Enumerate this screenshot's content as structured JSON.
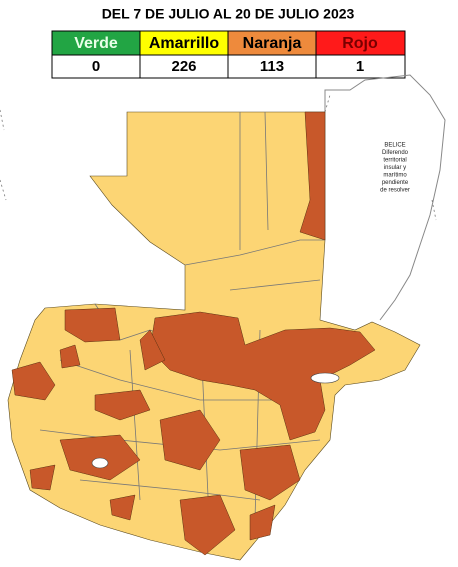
{
  "title": "DEL 7 DE JULIO AL 20 DE JULIO 2023",
  "table": {
    "header": [
      "Verde",
      "Amarrillo",
      "Naranja",
      "Rojo"
    ],
    "rows": [
      [
        0,
        226,
        113,
        1
      ]
    ]
  },
  "note": {
    "lines": [
      "BELICE",
      "Diferendo",
      "territorial",
      "insular y",
      "marítimo",
      "pendiente",
      "de resolver"
    ]
  }
}
